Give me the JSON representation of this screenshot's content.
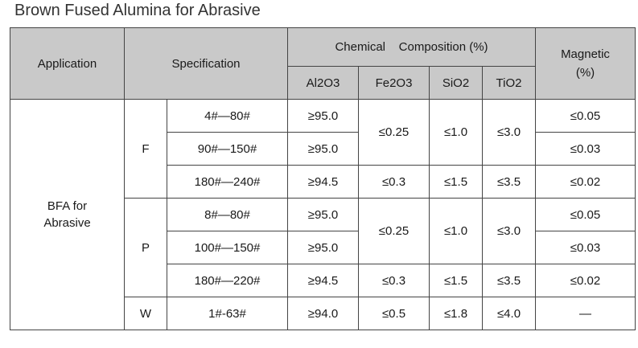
{
  "title": "Brown Fused Alumina for Abrasive",
  "header": {
    "application": "Application",
    "specification": "Specification",
    "chemical": "Chemical    Composition (%)",
    "magnetic_line1": "Magnetic",
    "magnetic_line2": "(%)",
    "cols": [
      "Al2O3",
      "Fe2O3",
      "SiO2",
      "TiO2"
    ]
  },
  "body": {
    "application_line1": "BFA for",
    "application_line2": "Abrasive",
    "groups": [
      {
        "grade": "F",
        "rows": [
          {
            "size": "4#—80#",
            "al2o3": "≥95.0",
            "magnetic": "≤0.05"
          },
          {
            "size": "90#—150#",
            "al2o3": "≥95.0",
            "magnetic": "≤0.03"
          },
          {
            "size": "180#—240#",
            "al2o3": "≥94.5",
            "fe2o3": "≤0.3",
            "sio2": "≤1.5",
            "tio2": "≤3.5",
            "magnetic": "≤0.02"
          }
        ],
        "shared": {
          "fe2o3": "≤0.25",
          "sio2": "≤1.0",
          "tio2": "≤3.0"
        }
      },
      {
        "grade": "P",
        "rows": [
          {
            "size": "8#—80#",
            "al2o3": "≥95.0",
            "magnetic": "≤0.05"
          },
          {
            "size": "100#—150#",
            "al2o3": "≥95.0",
            "magnetic": "≤0.03"
          },
          {
            "size": "180#—220#",
            "al2o3": "≥94.5",
            "fe2o3": "≤0.3",
            "sio2": "≤1.5",
            "tio2": "≤3.5",
            "magnetic": "≤0.02"
          }
        ],
        "shared": {
          "fe2o3": "≤0.25",
          "sio2": "≤1.0",
          "tio2": "≤3.0"
        }
      },
      {
        "grade": "W",
        "rows": [
          {
            "size": "1#-63#",
            "al2o3": "≥94.0",
            "fe2o3": "≤0.5",
            "sio2": "≤1.8",
            "tio2": "≤4.0",
            "magnetic": "—"
          }
        ]
      }
    ]
  }
}
